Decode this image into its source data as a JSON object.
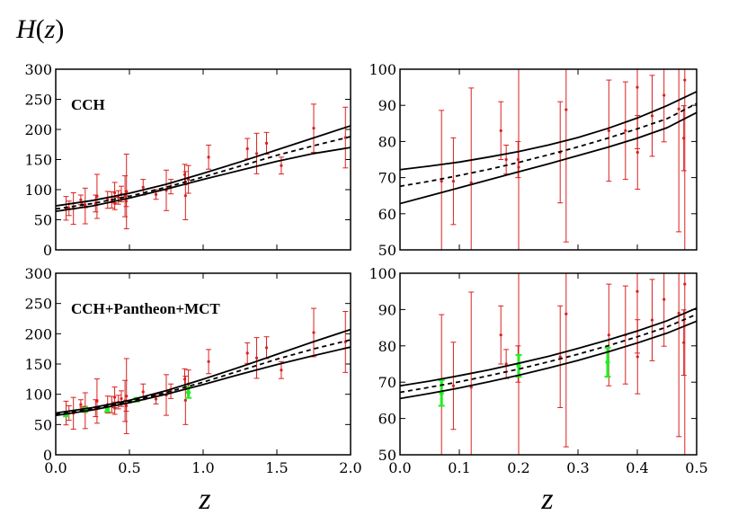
{
  "figure": {
    "ylabel": "H(z)",
    "ylabel_parts": [
      "H",
      "(",
      "z",
      ")"
    ],
    "xlabel": "z"
  },
  "colors": {
    "cch": "#d8211f",
    "mct": "#22ee22",
    "curve": "#000000"
  },
  "chart_data": [
    {
      "type": "line",
      "panel": "top-left",
      "label": "CCH",
      "xlim": [
        0,
        2.0
      ],
      "ylim": [
        0,
        300
      ],
      "xticks": [
        0.0,
        0.5,
        1.0,
        1.5,
        2.0
      ],
      "yticks": [
        0,
        50,
        100,
        150,
        200,
        250,
        300
      ],
      "xtick_labels": [],
      "ytick_labels": [
        "0",
        "50",
        "100",
        "150",
        "200",
        "250",
        "300"
      ],
      "band": {
        "x": [
          0,
          0.25,
          0.5,
          0.75,
          1.0,
          1.25,
          1.5,
          1.75,
          2.0
        ],
        "upper": [
          73,
          82,
          94,
          109,
          127,
          146,
          166,
          186,
          206
        ],
        "mean": [
          68,
          77,
          89,
          104,
          121,
          139,
          157,
          173,
          188
        ],
        "lower": [
          64,
          73,
          86,
          101,
          117,
          132,
          147,
          160,
          170
        ]
      },
      "series": [
        {
          "name": "CCH",
          "color": "#d8211f",
          "points": [
            [
              0.07,
              69,
              19.6
            ],
            [
              0.09,
              69,
              12
            ],
            [
              0.12,
              68.6,
              26.2
            ],
            [
              0.17,
              83,
              8
            ],
            [
              0.179,
              75,
              4
            ],
            [
              0.199,
              75,
              5
            ],
            [
              0.2,
              72.9,
              29.6
            ],
            [
              0.27,
              77,
              14
            ],
            [
              0.28,
              88.8,
              36.6
            ],
            [
              0.352,
              83,
              14
            ],
            [
              0.38,
              83,
              13.5
            ],
            [
              0.4,
              95,
              17
            ],
            [
              0.4004,
              77,
              10.2
            ],
            [
              0.425,
              87.1,
              11.2
            ],
            [
              0.445,
              92.8,
              12.9
            ],
            [
              0.47,
              89,
              34
            ],
            [
              0.4783,
              80.9,
              9
            ],
            [
              0.48,
              97,
              62
            ],
            [
              0.593,
              104,
              13
            ],
            [
              0.68,
              92,
              8
            ],
            [
              0.75,
              98.8,
              33.6
            ],
            [
              0.781,
              105,
              12
            ],
            [
              0.875,
              125,
              17
            ],
            [
              0.88,
              90,
              40
            ],
            [
              0.9,
              117,
              23
            ],
            [
              1.037,
              154,
              20
            ],
            [
              1.3,
              168,
              17
            ],
            [
              1.363,
              160,
              33.6
            ],
            [
              1.43,
              177,
              18
            ],
            [
              1.53,
              140,
              14
            ],
            [
              1.75,
              202,
              40
            ],
            [
              1.965,
              186.5,
              50.4
            ]
          ]
        }
      ]
    },
    {
      "type": "line",
      "panel": "top-right",
      "label": "",
      "xlim": [
        0,
        0.5
      ],
      "ylim": [
        50,
        100
      ],
      "xticks": [
        0.0,
        0.1,
        0.2,
        0.3,
        0.4,
        0.5
      ],
      "yticks": [
        50,
        60,
        70,
        80,
        90,
        100
      ],
      "xtick_labels": [],
      "ytick_labels": [
        "50",
        "60",
        "70",
        "80",
        "90",
        "100"
      ],
      "band": {
        "x": [
          0,
          0.05,
          0.1,
          0.15,
          0.2,
          0.25,
          0.3,
          0.35,
          0.4,
          0.45,
          0.5
        ],
        "upper": [
          72.2,
          73.2,
          74.3,
          75.7,
          77.2,
          79.0,
          81.1,
          83.6,
          86.5,
          89.9,
          93.8
        ],
        "mean": [
          67.6,
          69.0,
          70.6,
          72.3,
          74.2,
          76.3,
          78.5,
          80.9,
          83.5,
          86.3,
          90.5
        ],
        "lower": [
          62.8,
          65.0,
          67.2,
          69.4,
          71.6,
          73.8,
          76.1,
          78.4,
          80.9,
          83.8,
          88.0
        ]
      },
      "series": [
        {
          "name": "CCH",
          "color": "#d8211f",
          "points": [
            [
              0.07,
              69,
              19.6
            ],
            [
              0.09,
              69,
              12
            ],
            [
              0.12,
              68.6,
              26.2
            ],
            [
              0.17,
              83,
              8
            ],
            [
              0.179,
              75,
              4
            ],
            [
              0.199,
              75,
              5
            ],
            [
              0.2,
              72.9,
              29.6
            ],
            [
              0.27,
              77,
              14
            ],
            [
              0.28,
              88.8,
              36.6
            ],
            [
              0.352,
              83,
              14
            ],
            [
              0.38,
              83,
              13.5
            ],
            [
              0.4,
              95,
              17
            ],
            [
              0.4004,
              77,
              10.2
            ],
            [
              0.425,
              87.1,
              11.2
            ],
            [
              0.445,
              92.8,
              12.9
            ],
            [
              0.47,
              89,
              34
            ],
            [
              0.4783,
              80.9,
              9
            ],
            [
              0.48,
              97,
              62
            ]
          ]
        }
      ]
    },
    {
      "type": "line",
      "panel": "bottom-left",
      "label": "CCH+Pantheon+MCT",
      "xlim": [
        0,
        2.0
      ],
      "ylim": [
        0,
        300
      ],
      "xticks": [
        0.0,
        0.5,
        1.0,
        1.5,
        2.0
      ],
      "yticks": [
        0,
        50,
        100,
        150,
        200,
        250,
        300
      ],
      "xtick_labels": [
        "0.0",
        "0.5",
        "1.0",
        "1.5",
        "2.0"
      ],
      "ytick_labels": [
        "0",
        "50",
        "100",
        "150",
        "200",
        "250",
        "300"
      ],
      "band": {
        "x": [
          0,
          0.25,
          0.5,
          0.75,
          1.0,
          1.25,
          1.5,
          1.75,
          2.0
        ],
        "upper": [
          69,
          78,
          90,
          106,
          125,
          145,
          166,
          187,
          207
        ],
        "mean": [
          67,
          76,
          88,
          103,
          120,
          139,
          158,
          175,
          190
        ],
        "lower": [
          65,
          74,
          86,
          100,
          116,
          133,
          149,
          164,
          178
        ]
      },
      "series": [
        {
          "name": "CCH",
          "color": "#d8211f",
          "points": [
            [
              0.07,
              69,
              19.6
            ],
            [
              0.09,
              69,
              12
            ],
            [
              0.12,
              68.6,
              26.2
            ],
            [
              0.17,
              83,
              8
            ],
            [
              0.179,
              75,
              4
            ],
            [
              0.199,
              75,
              5
            ],
            [
              0.2,
              72.9,
              29.6
            ],
            [
              0.27,
              77,
              14
            ],
            [
              0.28,
              88.8,
              36.6
            ],
            [
              0.352,
              83,
              14
            ],
            [
              0.38,
              83,
              13.5
            ],
            [
              0.4,
              95,
              17
            ],
            [
              0.4004,
              77,
              10.2
            ],
            [
              0.425,
              87.1,
              11.2
            ],
            [
              0.445,
              92.8,
              12.9
            ],
            [
              0.47,
              89,
              34
            ],
            [
              0.4783,
              80.9,
              9
            ],
            [
              0.48,
              97,
              62
            ],
            [
              0.593,
              104,
              13
            ],
            [
              0.68,
              92,
              8
            ],
            [
              0.75,
              98.8,
              33.6
            ],
            [
              0.781,
              105,
              12
            ],
            [
              0.875,
              125,
              17
            ],
            [
              0.88,
              90,
              40
            ],
            [
              0.9,
              117,
              23
            ],
            [
              1.037,
              154,
              20
            ],
            [
              1.3,
              168,
              17
            ],
            [
              1.363,
              160,
              33.6
            ],
            [
              1.43,
              177,
              18
            ],
            [
              1.53,
              140,
              14
            ],
            [
              1.75,
              202,
              40
            ],
            [
              1.965,
              186.5,
              50.4
            ]
          ]
        },
        {
          "name": "MCT",
          "color": "#22ee22",
          "points": [
            [
              0.07,
              67,
              3.5
            ],
            [
              0.2,
              74.5,
              3
            ],
            [
              0.35,
              75.5,
              4
            ],
            [
              0.55,
              91,
              3
            ],
            [
              0.9,
              103,
              9
            ]
          ]
        }
      ]
    },
    {
      "type": "line",
      "panel": "bottom-right",
      "label": "",
      "xlim": [
        0,
        0.5
      ],
      "ylim": [
        50,
        100
      ],
      "xticks": [
        0.0,
        0.1,
        0.2,
        0.3,
        0.4,
        0.5
      ],
      "yticks": [
        50,
        60,
        70,
        80,
        90,
        100
      ],
      "xtick_labels": [
        "0.0",
        "0.1",
        "0.2",
        "0.3",
        "0.4",
        "0.5"
      ],
      "ytick_labels": [
        "50",
        "60",
        "70",
        "80",
        "90",
        "100"
      ],
      "band": {
        "x": [
          0,
          0.05,
          0.1,
          0.15,
          0.2,
          0.25,
          0.3,
          0.35,
          0.4,
          0.45,
          0.5
        ],
        "upper": [
          69.0,
          70.3,
          71.8,
          73.4,
          75.2,
          77.1,
          79.3,
          81.6,
          84.1,
          86.9,
          90.4
        ],
        "mean": [
          67.2,
          68.6,
          70.1,
          71.8,
          73.6,
          75.6,
          77.7,
          80.0,
          82.5,
          85.2,
          88.7
        ],
        "lower": [
          65.5,
          66.9,
          68.4,
          70.1,
          71.9,
          73.9,
          76.0,
          78.3,
          80.8,
          83.5,
          86.8
        ]
      },
      "series": [
        {
          "name": "CCH",
          "color": "#d8211f",
          "points": [
            [
              0.07,
              69,
              19.6
            ],
            [
              0.09,
              69,
              12
            ],
            [
              0.12,
              68.6,
              26.2
            ],
            [
              0.17,
              83,
              8
            ],
            [
              0.179,
              75,
              4
            ],
            [
              0.199,
              75,
              5
            ],
            [
              0.2,
              72.9,
              29.6
            ],
            [
              0.27,
              77,
              14
            ],
            [
              0.28,
              88.8,
              36.6
            ],
            [
              0.352,
              83,
              14
            ],
            [
              0.38,
              83,
              13.5
            ],
            [
              0.4,
              95,
              17
            ],
            [
              0.4004,
              77,
              10.2
            ],
            [
              0.425,
              87.1,
              11.2
            ],
            [
              0.445,
              92.8,
              12.9
            ],
            [
              0.47,
              89,
              34
            ],
            [
              0.4783,
              80.9,
              9
            ],
            [
              0.48,
              97,
              62
            ]
          ]
        },
        {
          "name": "MCT",
          "color": "#22ee22",
          "points": [
            [
              0.07,
              67,
              3.5
            ],
            [
              0.2,
              74.5,
              3
            ],
            [
              0.35,
              75.5,
              4
            ]
          ]
        }
      ]
    }
  ]
}
